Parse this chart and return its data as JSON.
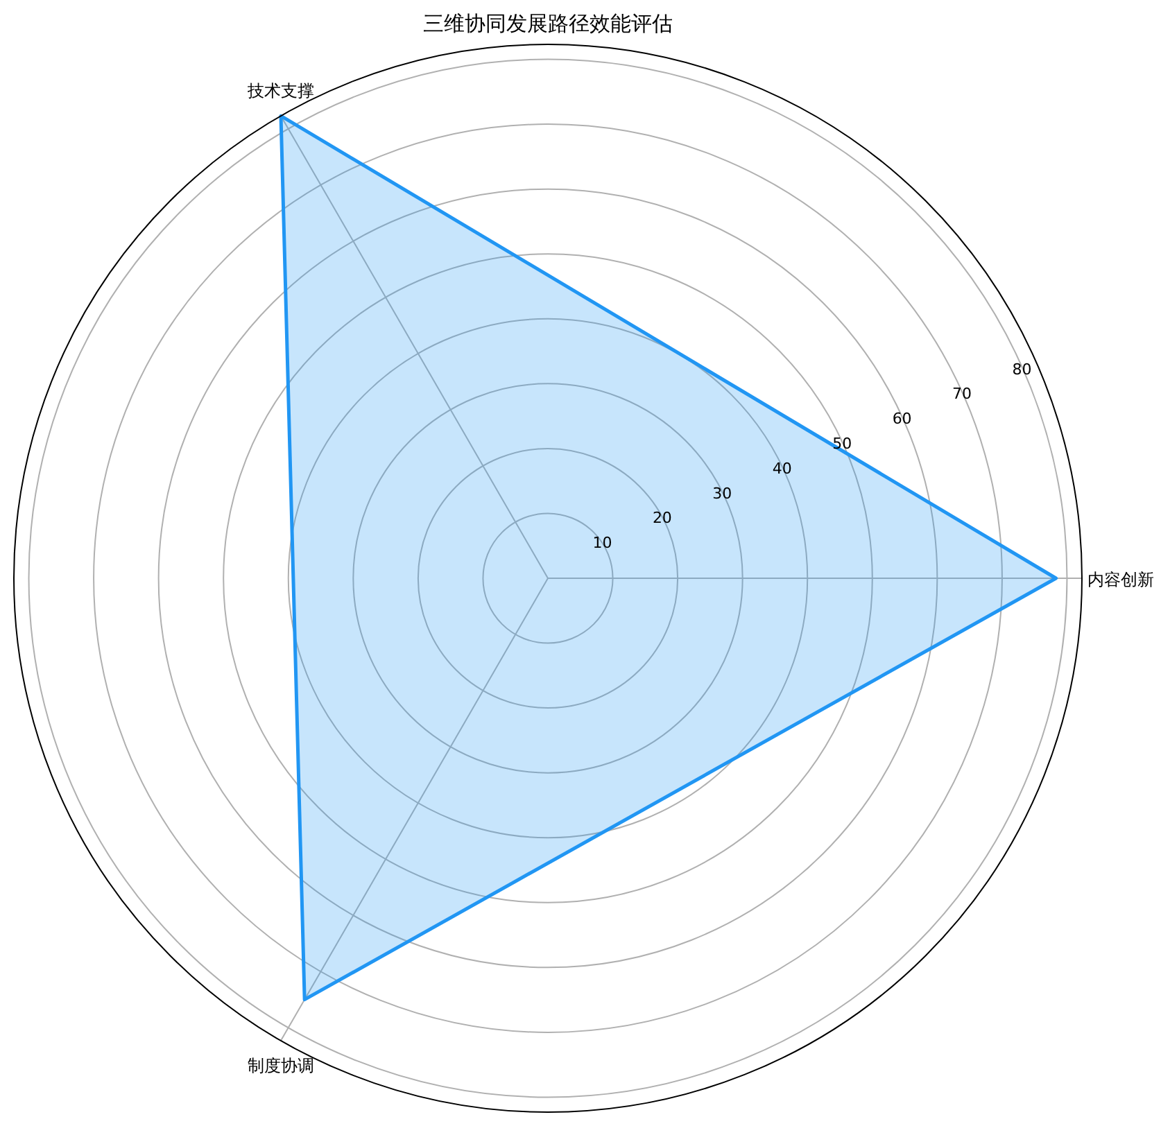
{
  "chart_data": {
    "type": "radar",
    "title": "三维协同发展路径效能评估",
    "categories": [
      "内容创新",
      "制度协调",
      "技术支撑"
    ],
    "series": [
      {
        "color": "#2196f3",
        "values": [
          78.3,
          75,
          82.3
        ]
      }
    ],
    "ylim": [
      0,
      82.3
    ],
    "yticks": [
      10,
      20,
      30,
      40,
      50,
      60,
      70,
      80
    ],
    "grid": true
  }
}
